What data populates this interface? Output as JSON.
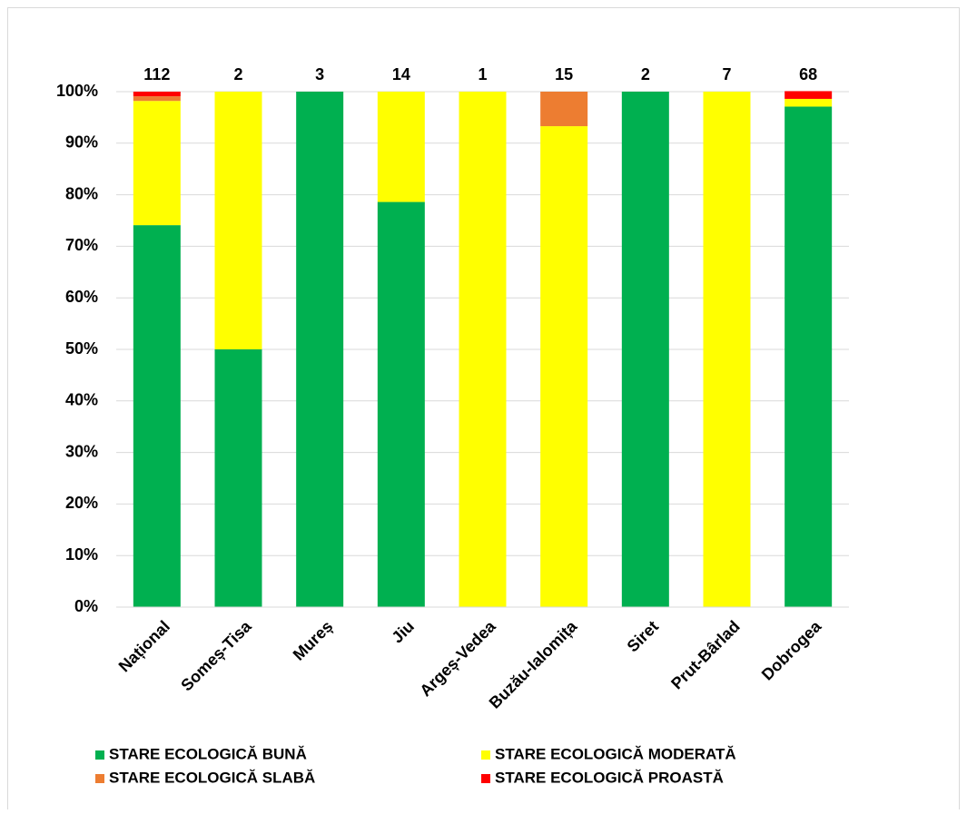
{
  "chart_data": {
    "type": "stacked_bar_percent",
    "categories": [
      "Național",
      "Someș-Tisa",
      "Mureș",
      "Jiu",
      "Argeș-Vedea",
      "Buzău-Ialomița",
      "Siret",
      "Prut-Bârlad",
      "Dobrogea"
    ],
    "totals": [
      112,
      2,
      3,
      14,
      1,
      15,
      2,
      7,
      68
    ],
    "series": [
      {
        "name": "STARE ECOLOGICĂ BUNĂ",
        "color": "#00b050",
        "values": [
          74.1,
          50,
          100,
          78.6,
          0,
          0,
          100,
          0,
          97.1
        ]
      },
      {
        "name": "STARE ECOLOGICĂ MODERATĂ",
        "color": "#ffff00",
        "values": [
          24.1,
          50,
          0,
          21.4,
          100,
          93.3,
          0,
          100,
          1.5
        ]
      },
      {
        "name": "STARE ECOLOGICĂ SLABĂ",
        "color": "#ed7d31",
        "values": [
          0.9,
          0,
          0,
          0,
          0,
          6.7,
          0,
          0,
          0
        ]
      },
      {
        "name": "STARE ECOLOGICĂ PROASTĂ",
        "color": "#ff0000",
        "values": [
          0.9,
          0,
          0,
          0,
          0,
          0,
          0,
          0,
          1.5
        ]
      }
    ],
    "ylim": [
      0,
      100
    ],
    "yticks": [
      {
        "value": 0,
        "label": "0%"
      },
      {
        "value": 10,
        "label": "10%"
      },
      {
        "value": 20,
        "label": "20%"
      },
      {
        "value": 30,
        "label": "30%"
      },
      {
        "value": 40,
        "label": "40%"
      },
      {
        "value": 50,
        "label": "50%"
      },
      {
        "value": 60,
        "label": "60%"
      },
      {
        "value": 70,
        "label": "70%"
      },
      {
        "value": 80,
        "label": "80%"
      },
      {
        "value": 90,
        "label": "90%"
      },
      {
        "value": 100,
        "label": "100%"
      }
    ],
    "grid": true
  }
}
